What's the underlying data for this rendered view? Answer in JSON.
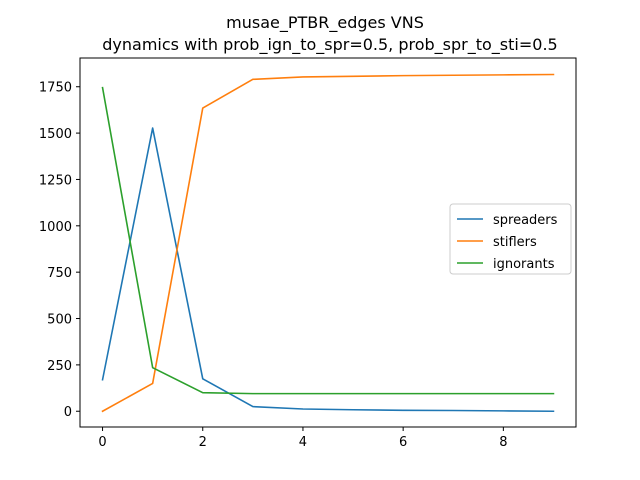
{
  "chart_data": {
    "type": "line",
    "title_line1": "musae_PTBR_edges VNS",
    "title_line2": "dynamics with prob_ign_to_spr=0.5, prob_spr_to_sti=0.5",
    "xlabel": "",
    "ylabel": "",
    "x": [
      0,
      1,
      2,
      3,
      4,
      5,
      6,
      7,
      8,
      9
    ],
    "xlim": [
      -0.45,
      9.45
    ],
    "ylim": [
      -85,
      1905
    ],
    "x_ticks": [
      0,
      2,
      4,
      6,
      8
    ],
    "y_ticks": [
      0,
      250,
      500,
      750,
      1000,
      1250,
      1500,
      1750
    ],
    "grid": false,
    "legend_position": "center-right",
    "series": [
      {
        "name": "spreaders",
        "color": "#1f77b4",
        "values": [
          170,
          1527,
          175,
          25,
          12,
          8,
          5,
          4,
          2,
          0
        ]
      },
      {
        "name": "stiflers",
        "color": "#ff7f0e",
        "values": [
          0,
          150,
          1635,
          1790,
          1803,
          1806,
          1810,
          1812,
          1814,
          1816
        ]
      },
      {
        "name": "ignorants",
        "color": "#2ca02c",
        "values": [
          1745,
          235,
          100,
          95,
          95,
          95,
          95,
          95,
          95,
          95
        ]
      }
    ]
  }
}
